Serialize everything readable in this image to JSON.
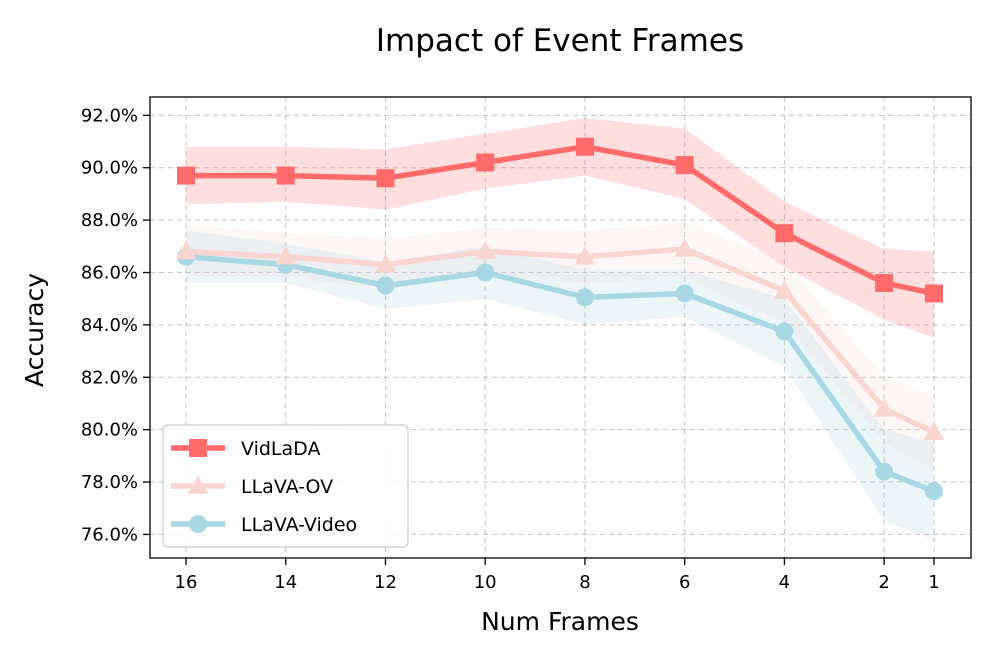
{
  "chart_data": {
    "type": "line",
    "title": "Impact of Event Frames",
    "xlabel": "Num Frames",
    "ylabel": "Accuracy",
    "x": [
      16,
      14,
      12,
      10,
      8,
      6,
      4,
      2,
      1
    ],
    "x_tick_labels": [
      "16",
      "14",
      "12",
      "10",
      "8",
      "6",
      "4",
      "2",
      "1"
    ],
    "y_ticks": [
      76,
      78,
      80,
      82,
      84,
      86,
      88,
      90,
      92
    ],
    "y_tick_labels": [
      "76.0%",
      "78.0%",
      "80.0%",
      "82.0%",
      "84.0%",
      "86.0%",
      "88.0%",
      "90.0%",
      "92.0%"
    ],
    "ylim": [
      75.1,
      92.7
    ],
    "grid": true,
    "legend_position": "lower-left",
    "series": [
      {
        "name": "VidLaDA",
        "color": "#ff6b6b",
        "marker": "square",
        "values": [
          89.7,
          89.7,
          89.6,
          90.2,
          90.8,
          90.1,
          87.5,
          85.6,
          85.2
        ],
        "band_lower": [
          88.6,
          88.7,
          88.4,
          89.2,
          89.7,
          88.8,
          86.2,
          84.2,
          83.5
        ],
        "band_upper": [
          90.8,
          90.8,
          90.7,
          91.3,
          91.9,
          91.5,
          88.7,
          86.9,
          86.8
        ]
      },
      {
        "name": "LLaVA-OV",
        "color": "#f9d5d0",
        "marker": "triangle",
        "values": [
          86.8,
          86.6,
          86.3,
          86.8,
          86.6,
          86.9,
          85.3,
          80.8,
          79.9
        ],
        "band_lower": [
          85.9,
          85.8,
          85.4,
          85.9,
          85.6,
          85.8,
          84.1,
          79.5,
          78.5
        ],
        "band_upper": [
          87.8,
          87.5,
          87.3,
          87.7,
          87.6,
          87.9,
          86.4,
          82.0,
          81.3
        ]
      },
      {
        "name": "LLaVA-Video",
        "color": "#a8d8e3",
        "marker": "circle",
        "values": [
          86.6,
          86.3,
          85.5,
          86.0,
          85.05,
          85.2,
          83.75,
          78.4,
          77.65
        ],
        "band_lower": [
          85.6,
          85.6,
          84.6,
          85.0,
          84.0,
          84.3,
          82.4,
          76.5,
          75.8
        ],
        "band_upper": [
          87.6,
          87.1,
          86.4,
          87.0,
          86.1,
          86.1,
          85.0,
          80.0,
          79.5
        ]
      }
    ]
  }
}
